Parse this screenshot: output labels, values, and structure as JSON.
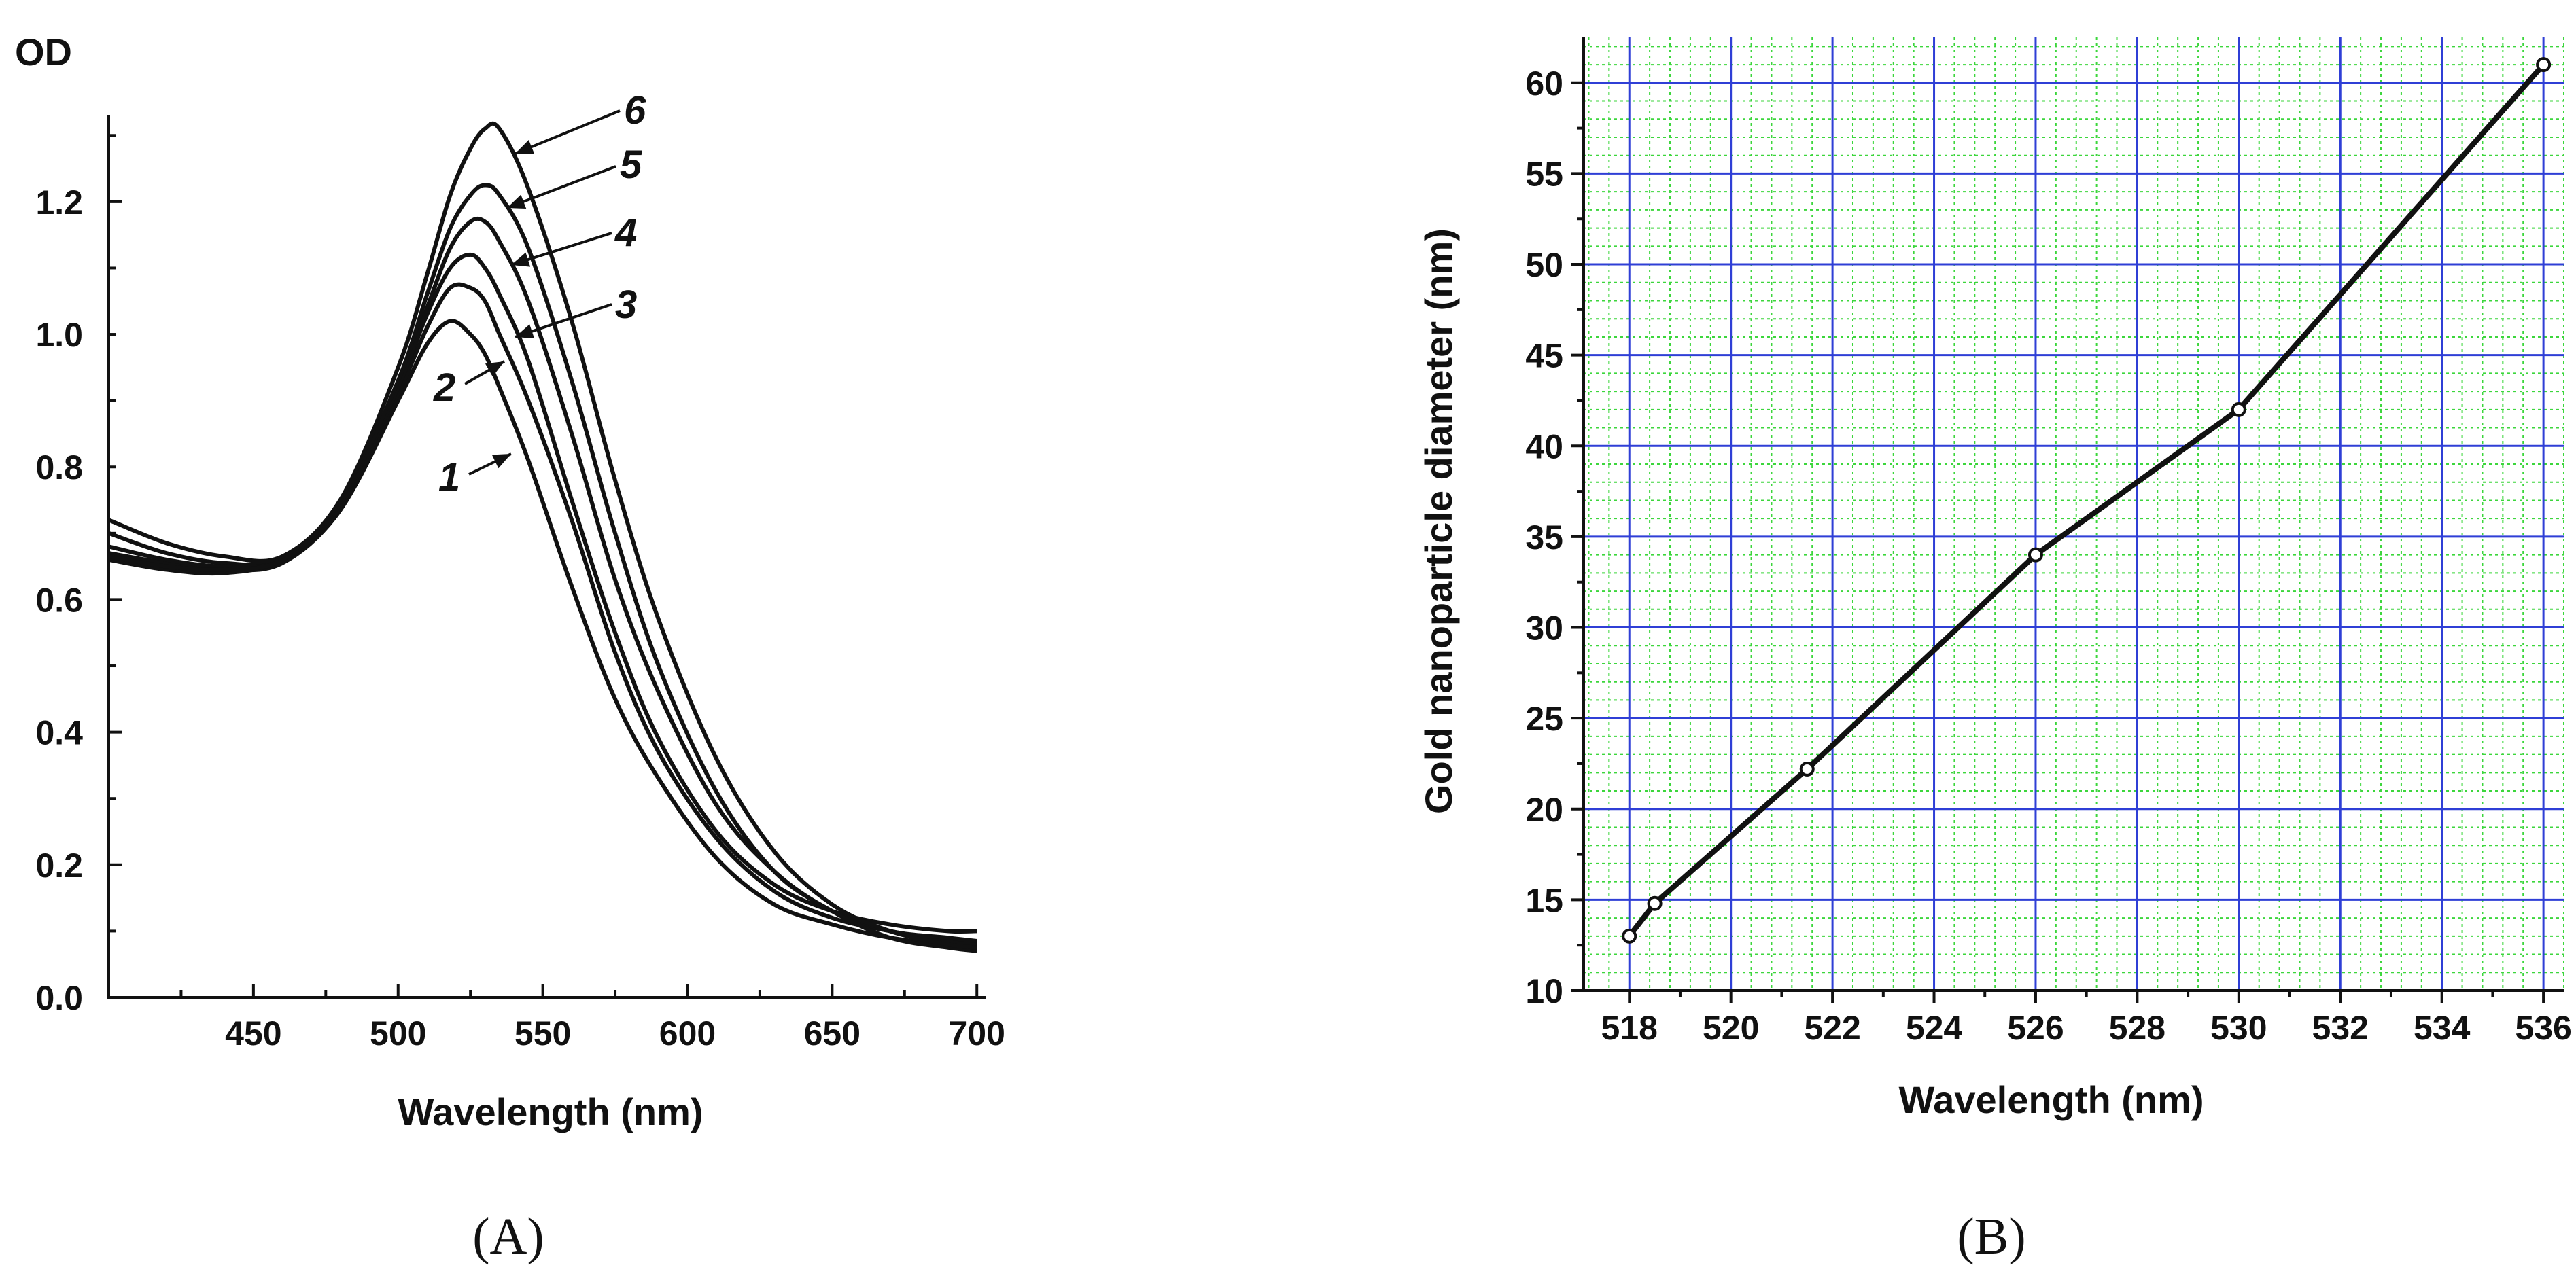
{
  "chart_data": [
    {
      "type": "line",
      "panel": "A",
      "ylabel": "OD",
      "xlabel": "Wavelength (nm)",
      "xlim": [
        400,
        703
      ],
      "ylim": [
        0,
        1.33
      ],
      "xticks": [
        450,
        500,
        550,
        600,
        650,
        700
      ],
      "yticks": [
        0.0,
        0.2,
        0.4,
        0.6,
        0.8,
        1.0,
        1.2
      ],
      "xtick_labels": [
        "450",
        "500",
        "550",
        "600",
        "650",
        "700"
      ],
      "ytick_labels": [
        "0.0",
        "0.2",
        "0.4",
        "0.6",
        "0.8",
        "1.0",
        "1.2"
      ],
      "x": [
        400,
        420,
        440,
        460,
        480,
        500,
        510,
        518,
        525,
        530,
        535,
        545,
        560,
        575,
        590,
        610,
        630,
        650,
        670,
        690,
        700
      ],
      "series": [
        {
          "name": "1",
          "values": [
            0.67,
            0.655,
            0.645,
            0.655,
            0.735,
            0.9,
            0.985,
            1.02,
            1.0,
            0.97,
            0.92,
            0.81,
            0.62,
            0.45,
            0.33,
            0.21,
            0.14,
            0.11,
            0.09,
            0.08,
            0.08
          ]
        },
        {
          "name": "2",
          "values": [
            0.7,
            0.67,
            0.655,
            0.66,
            0.735,
            0.91,
            1.01,
            1.07,
            1.07,
            1.05,
            1.0,
            0.9,
            0.72,
            0.52,
            0.37,
            0.24,
            0.16,
            0.12,
            0.1,
            0.085,
            0.08
          ]
        },
        {
          "name": "3",
          "values": [
            0.68,
            0.66,
            0.65,
            0.66,
            0.74,
            0.92,
            1.03,
            1.1,
            1.12,
            1.1,
            1.06,
            0.96,
            0.75,
            0.55,
            0.39,
            0.25,
            0.17,
            0.13,
            0.11,
            0.1,
            0.1
          ]
        },
        {
          "name": "4",
          "values": [
            0.66,
            0.645,
            0.64,
            0.66,
            0.74,
            0.92,
            1.04,
            1.13,
            1.17,
            1.17,
            1.14,
            1.05,
            0.85,
            0.63,
            0.46,
            0.29,
            0.19,
            0.13,
            0.1,
            0.09,
            0.085
          ]
        },
        {
          "name": "5",
          "values": [
            0.665,
            0.65,
            0.645,
            0.66,
            0.745,
            0.93,
            1.06,
            1.16,
            1.21,
            1.225,
            1.21,
            1.13,
            0.93,
            0.7,
            0.5,
            0.31,
            0.19,
            0.13,
            0.09,
            0.075,
            0.07
          ]
        },
        {
          "name": "6",
          "values": [
            0.72,
            0.685,
            0.665,
            0.665,
            0.75,
            0.95,
            1.09,
            1.21,
            1.28,
            1.31,
            1.31,
            1.22,
            1.02,
            0.78,
            0.57,
            0.36,
            0.22,
            0.14,
            0.1,
            0.08,
            0.075
          ]
        }
      ],
      "curve_labels": [
        "1",
        "2",
        "3",
        "4",
        "5",
        "6"
      ],
      "panel_label": "(A)"
    },
    {
      "type": "line",
      "panel": "B",
      "xlabel": "Wavelength (nm)",
      "ylabel": "Gold nanoparticle diameter (nm)",
      "xlim": [
        517.1,
        536.4
      ],
      "ylim": [
        10,
        62.5
      ],
      "xticks": [
        518,
        520,
        522,
        524,
        526,
        528,
        530,
        532,
        534,
        536
      ],
      "yticks": [
        10,
        15,
        20,
        25,
        30,
        35,
        40,
        45,
        50,
        55,
        60
      ],
      "xtick_labels": [
        "518",
        "520",
        "522",
        "524",
        "526",
        "528",
        "530",
        "532",
        "534",
        "536"
      ],
      "ytick_labels": [
        "10",
        "15",
        "20",
        "25",
        "30",
        "35",
        "40",
        "45",
        "50",
        "55",
        "60"
      ],
      "grid": true,
      "series": [
        {
          "name": "diameter",
          "x": [
            518,
            518.5,
            521.5,
            526,
            530,
            536
          ],
          "values": [
            13,
            14.8,
            22.2,
            34,
            42,
            61
          ]
        }
      ],
      "panel_label": "(B)"
    }
  ],
  "colors": {
    "major_grid": "#2f3fd6",
    "minor_grid": "#3cd63c",
    "ink": "#111111",
    "marker_fill": "#ffffff"
  }
}
